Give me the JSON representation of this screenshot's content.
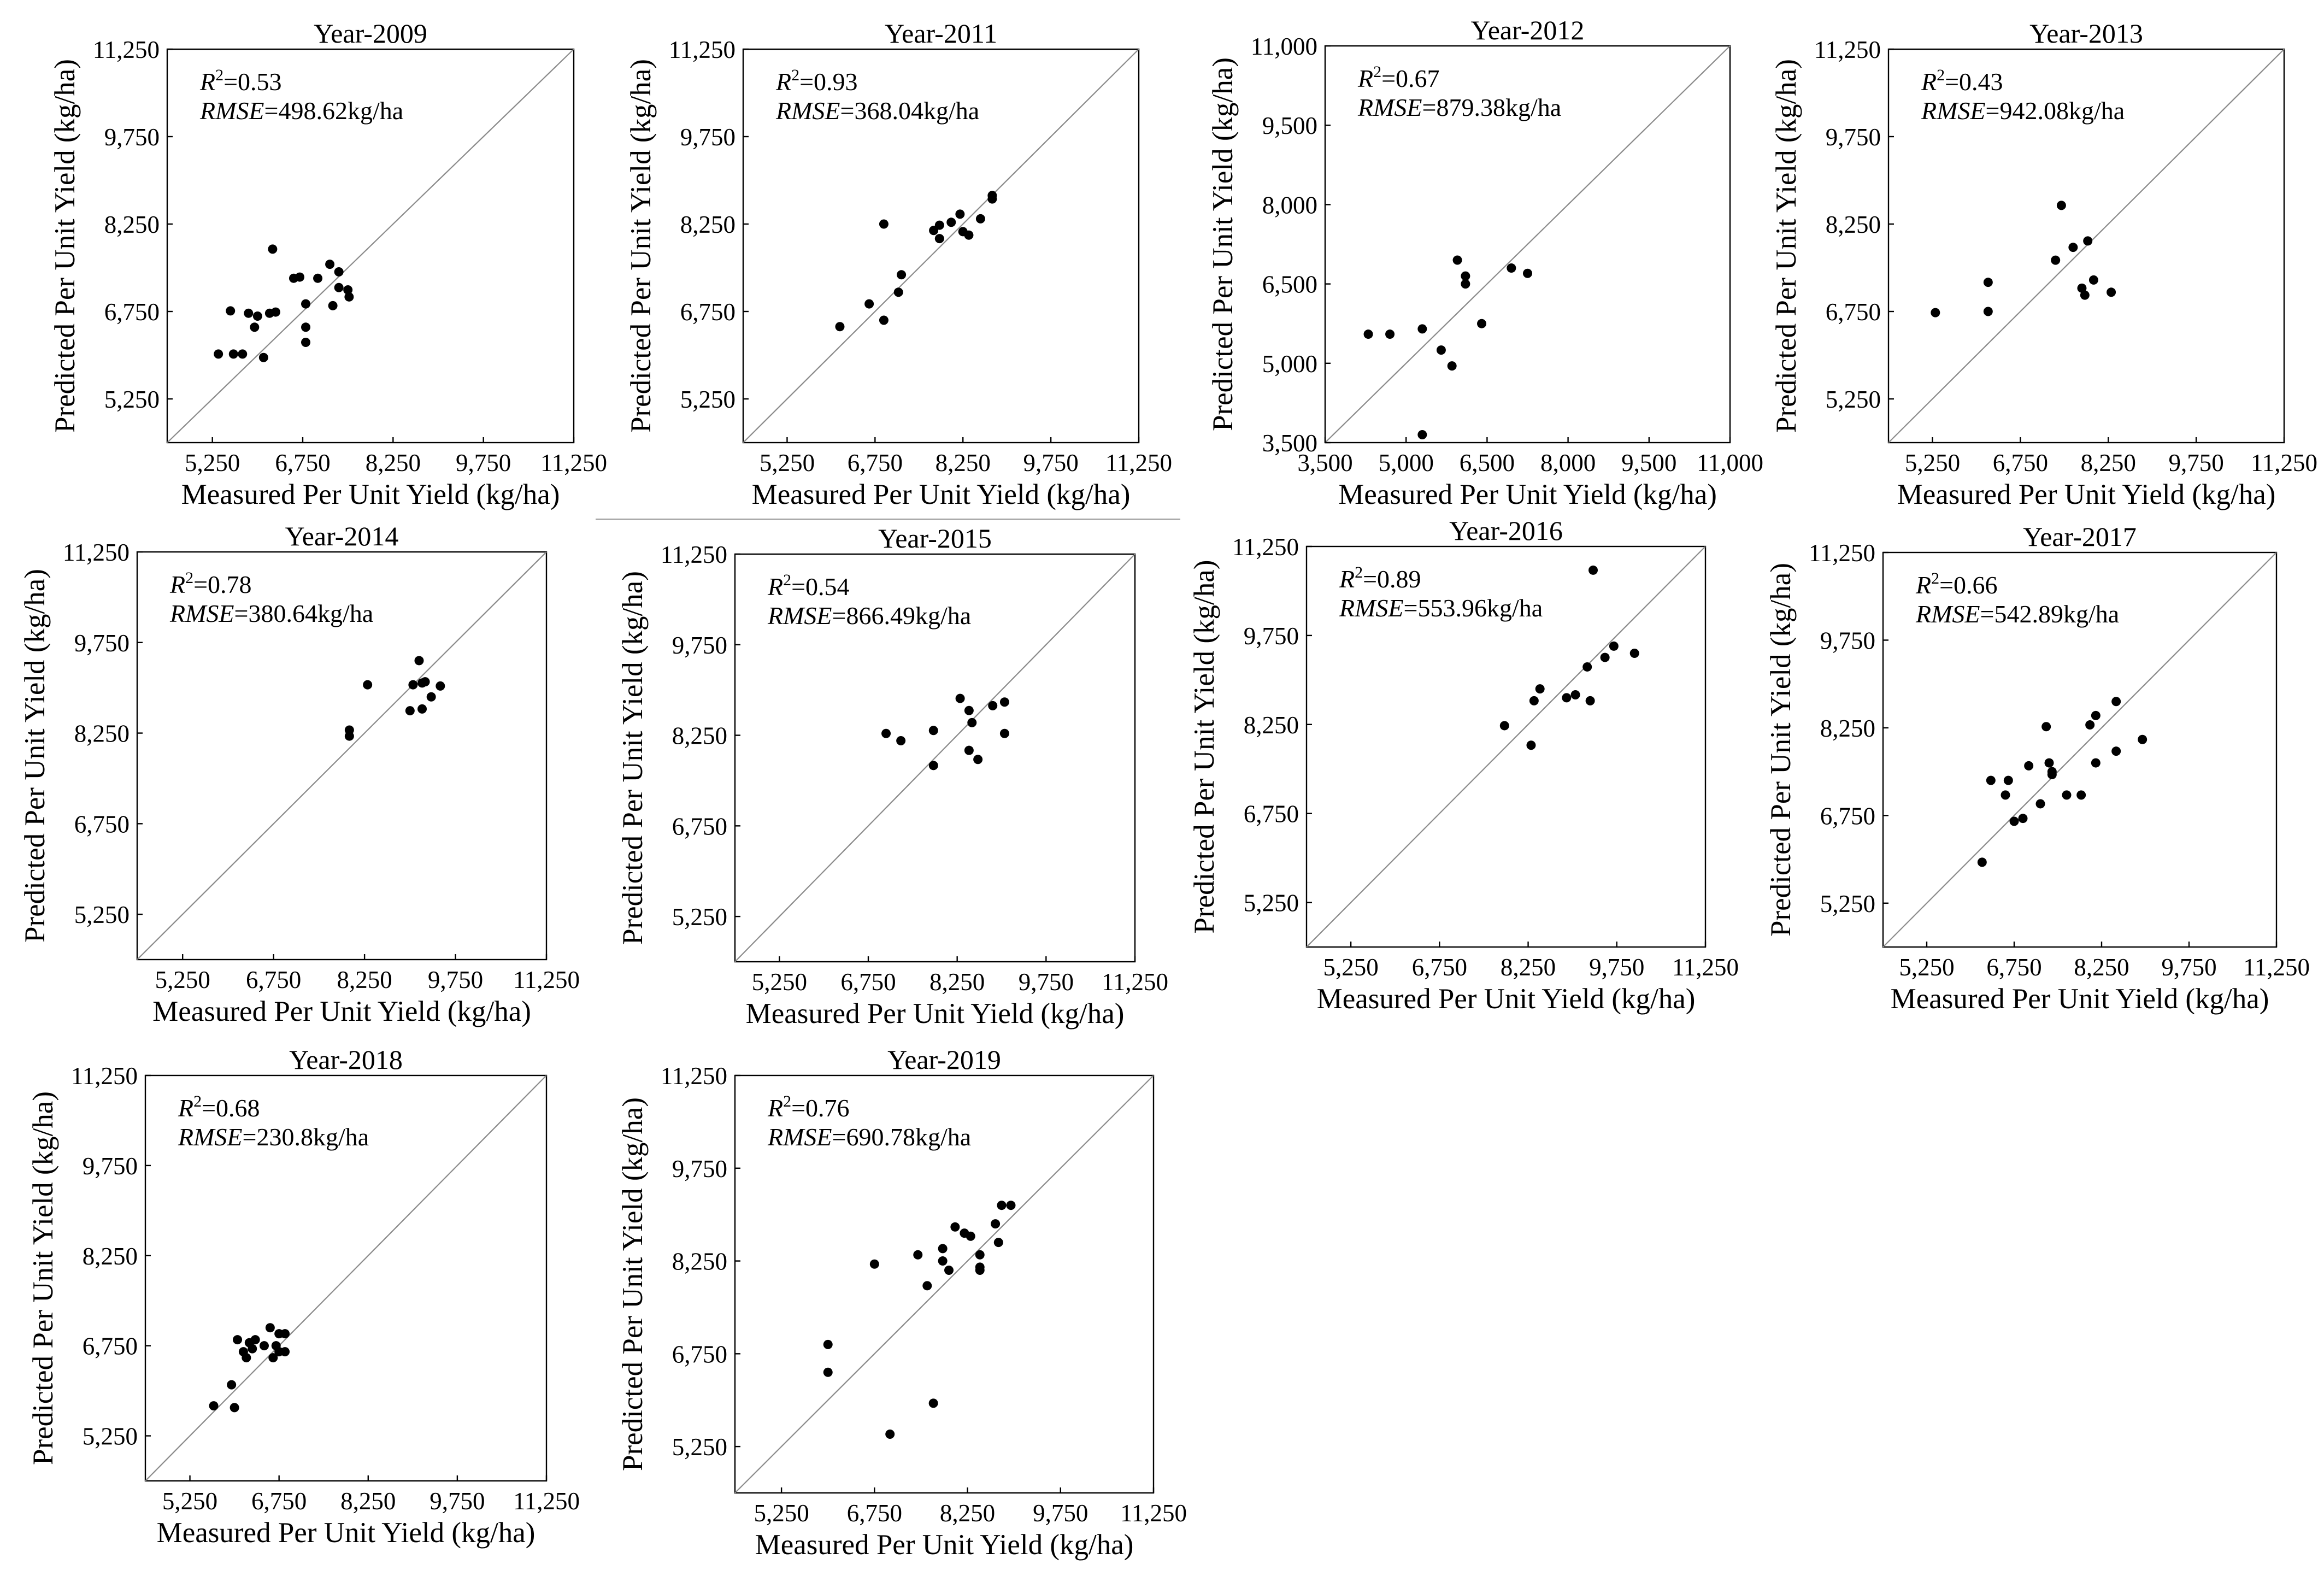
{
  "figure": {
    "xlabel": "Measured Per Unit Yield (kg/ha)",
    "ylabel": "Predicted Per Unit Yield (kg/ha)",
    "r2_label": "R",
    "r2_exponent": "2",
    "rmse_label": "RMSE"
  },
  "chart_data": [
    {
      "type": "scatter",
      "title": "Year-2009",
      "xlabel": "Measured Per Unit Yield (kg/ha)",
      "ylabel": "Predicted Per Unit Yield (kg/ha)",
      "xlim": [
        4500,
        11250
      ],
      "ylim": [
        4500,
        11250
      ],
      "xticks": [
        5250,
        6750,
        8250,
        9750,
        11250
      ],
      "yticks": [
        5250,
        6750,
        8250,
        9750,
        11250
      ],
      "x_tick_labels": [
        "5,250",
        "6,750",
        "8,250",
        "9,750",
        "11,250"
      ],
      "y_tick_labels": [
        "5,250",
        "6,750",
        "8,250",
        "9,750",
        "11,250"
      ],
      "reference_line": "1:1",
      "r2": "=0.53",
      "rmse": "=498.62kg/ha",
      "points": [
        [
          5350,
          6020
        ],
        [
          5550,
          6760
        ],
        [
          5600,
          6020
        ],
        [
          5750,
          6020
        ],
        [
          5850,
          6720
        ],
        [
          5950,
          6480
        ],
        [
          6000,
          6670
        ],
        [
          6100,
          5960
        ],
        [
          6200,
          6720
        ],
        [
          6300,
          6740
        ],
        [
          6250,
          7820
        ],
        [
          6600,
          7320
        ],
        [
          6700,
          7340
        ],
        [
          6800,
          6880
        ],
        [
          6800,
          6480
        ],
        [
          6800,
          6220
        ],
        [
          7000,
          7320
        ],
        [
          7200,
          7560
        ],
        [
          7350,
          7430
        ],
        [
          7250,
          6850
        ],
        [
          7500,
          7120
        ],
        [
          7520,
          7000
        ],
        [
          7350,
          7160
        ]
      ]
    },
    {
      "type": "scatter",
      "title": "Year-2011",
      "xlabel": "Measured Per Unit Yield (kg/ha)",
      "ylabel": "Predicted Per Unit Yield (kg/ha)",
      "xlim": [
        4500,
        11250
      ],
      "ylim": [
        4500,
        11250
      ],
      "xticks": [
        5250,
        6750,
        8250,
        9750,
        11250
      ],
      "yticks": [
        5250,
        6750,
        8250,
        9750,
        11250
      ],
      "x_tick_labels": [
        "5,250",
        "6,750",
        "8,250",
        "9,750",
        "11,250"
      ],
      "y_tick_labels": [
        "5,250",
        "6,750",
        "8,250",
        "9,750",
        "11,250"
      ],
      "reference_line": "1:1",
      "r2": "=0.93",
      "rmse": "=368.04kg/ha",
      "points": [
        [
          6150,
          6490
        ],
        [
          6650,
          6880
        ],
        [
          6900,
          6600
        ],
        [
          7150,
          7080
        ],
        [
          7200,
          7380
        ],
        [
          6900,
          8250
        ],
        [
          7750,
          8140
        ],
        [
          7850,
          8230
        ],
        [
          7850,
          8000
        ],
        [
          8050,
          8280
        ],
        [
          8200,
          8420
        ],
        [
          8250,
          8120
        ],
        [
          8350,
          8060
        ],
        [
          8550,
          8340
        ],
        [
          8750,
          8680
        ],
        [
          8750,
          8740
        ]
      ]
    },
    {
      "type": "scatter",
      "title": "Year-2012",
      "xlabel": "Measured Per Unit Yield (kg/ha)",
      "ylabel": "Predicted Per Unit Yield (kg/ha)",
      "xlim": [
        3500,
        11000
      ],
      "ylim": [
        3500,
        11000
      ],
      "xticks": [
        3500,
        5000,
        6500,
        8000,
        9500,
        11000
      ],
      "yticks": [
        3500,
        5000,
        6500,
        8000,
        9500,
        11000
      ],
      "x_tick_labels": [
        "3,500",
        "5,000",
        "6,500",
        "8,000",
        "9,500",
        "11,000"
      ],
      "y_tick_labels": [
        "3,500",
        "5,000",
        "6,500",
        "8,000",
        "9,500",
        "11,000"
      ],
      "reference_line": "1:1",
      "r2": "=0.67",
      "rmse": "=879.38kg/ha",
      "points": [
        [
          4300,
          5550
        ],
        [
          4700,
          5550
        ],
        [
          5300,
          5650
        ],
        [
          5300,
          3650
        ],
        [
          5650,
          5250
        ],
        [
          5850,
          4950
        ],
        [
          5950,
          6950
        ],
        [
          6100,
          6650
        ],
        [
          6100,
          6500
        ],
        [
          6400,
          5750
        ],
        [
          6950,
          6800
        ],
        [
          7250,
          6700
        ]
      ]
    },
    {
      "type": "scatter",
      "title": "Year-2013",
      "xlabel": "Measured Per Unit Yield (kg/ha)",
      "ylabel": "Predicted Per Unit Yield (kg/ha)",
      "xlim": [
        4500,
        11250
      ],
      "ylim": [
        4500,
        11250
      ],
      "xticks": [
        5250,
        6750,
        8250,
        9750,
        11250
      ],
      "yticks": [
        5250,
        6750,
        8250,
        9750,
        11250
      ],
      "x_tick_labels": [
        "5,250",
        "6,750",
        "8,250",
        "9,750",
        "11,250"
      ],
      "y_tick_labels": [
        "5,250",
        "6,750",
        "8,250",
        "9,750",
        "11,250"
      ],
      "reference_line": "1:1",
      "r2": "=0.43",
      "rmse": "=942.08kg/ha",
      "points": [
        [
          5300,
          6730
        ],
        [
          6200,
          6750
        ],
        [
          6200,
          7250
        ],
        [
          7350,
          7630
        ],
        [
          7450,
          8570
        ],
        [
          7650,
          7850
        ],
        [
          7800,
          7150
        ],
        [
          7850,
          7030
        ],
        [
          7900,
          7960
        ],
        [
          8000,
          7290
        ],
        [
          8300,
          7080
        ]
      ]
    },
    {
      "type": "scatter",
      "title": "Year-2014",
      "xlabel": "Measured Per Unit Yield (kg/ha)",
      "ylabel": "Predicted Per Unit Yield (kg/ha)",
      "xlim": [
        4500,
        11250
      ],
      "ylim": [
        4500,
        11250
      ],
      "xticks": [
        5250,
        6750,
        8250,
        9750,
        11250
      ],
      "yticks": [
        5250,
        6750,
        8250,
        9750,
        11250
      ],
      "x_tick_labels": [
        "5,250",
        "6,750",
        "8,250",
        "9,750",
        "11,250"
      ],
      "y_tick_labels": [
        "5,250",
        "6,750",
        "8,250",
        "9,750",
        "11,250"
      ],
      "reference_line": "1:1",
      "r2": "=0.78",
      "rmse": "=380.64kg/ha",
      "points": [
        [
          8000,
          8300
        ],
        [
          8000,
          8200
        ],
        [
          8300,
          9050
        ],
        [
          9000,
          8620
        ],
        [
          9050,
          9050
        ],
        [
          9150,
          9450
        ],
        [
          9200,
          9080
        ],
        [
          9200,
          8650
        ],
        [
          9350,
          8850
        ],
        [
          9500,
          9030
        ],
        [
          9250,
          9100
        ]
      ]
    },
    {
      "type": "scatter",
      "title": "Year-2015",
      "xlabel": "Measured Per Unit Yield (kg/ha)",
      "ylabel": "Predicted Per Unit Yield (kg/ha)",
      "xlim": [
        4500,
        11250
      ],
      "ylim": [
        4500,
        11250
      ],
      "xticks": [
        5250,
        6750,
        8250,
        9750,
        11250
      ],
      "yticks": [
        5250,
        6750,
        8250,
        9750,
        11250
      ],
      "x_tick_labels": [
        "5,250",
        "6,750",
        "8,250",
        "9,750",
        "11,250"
      ],
      "y_tick_labels": [
        "5,250",
        "6,750",
        "8,250",
        "9,750",
        "11,250"
      ],
      "reference_line": "1:1",
      "r2": "=0.54",
      "rmse": "=866.49kg/ha",
      "points": [
        [
          7050,
          8280
        ],
        [
          7300,
          8160
        ],
        [
          7850,
          8330
        ],
        [
          7850,
          7750
        ],
        [
          8300,
          8860
        ],
        [
          8450,
          8660
        ],
        [
          8500,
          8460
        ],
        [
          8450,
          8000
        ],
        [
          8600,
          7850
        ],
        [
          8850,
          8740
        ],
        [
          9050,
          8800
        ],
        [
          9050,
          8280
        ]
      ]
    },
    {
      "type": "scatter",
      "title": "Year-2016",
      "xlabel": "Measured Per Unit Yield (kg/ha)",
      "ylabel": "Predicted Per Unit Yield (kg/ha)",
      "xlim": [
        4500,
        11250
      ],
      "ylim": [
        4500,
        11250
      ],
      "xticks": [
        5250,
        6750,
        8250,
        9750,
        11250
      ],
      "yticks": [
        5250,
        6750,
        8250,
        9750,
        11250
      ],
      "x_tick_labels": [
        "5,250",
        "6,750",
        "8,250",
        "9,750",
        "11,250"
      ],
      "y_tick_labels": [
        "5,250",
        "6,750",
        "8,250",
        "9,750",
        "11,250"
      ],
      "reference_line": "1:1",
      "r2": "=0.89",
      "rmse": "=553.96kg/ha",
      "points": [
        [
          7850,
          8230
        ],
        [
          8300,
          7900
        ],
        [
          8350,
          8650
        ],
        [
          8450,
          8850
        ],
        [
          8900,
          8700
        ],
        [
          9050,
          8750
        ],
        [
          9250,
          9220
        ],
        [
          9300,
          8650
        ],
        [
          9350,
          10850
        ],
        [
          9550,
          9380
        ],
        [
          9700,
          9570
        ],
        [
          10050,
          9450
        ]
      ]
    },
    {
      "type": "scatter",
      "title": "Year-2017",
      "xlabel": "Measured Per Unit Yield (kg/ha)",
      "ylabel": "Predicted Per Unit Yield (kg/ha)",
      "xlim": [
        4500,
        11250
      ],
      "ylim": [
        4500,
        11250
      ],
      "xticks": [
        5250,
        6750,
        8250,
        9750,
        11250
      ],
      "yticks": [
        5250,
        6750,
        8250,
        9750,
        11250
      ],
      "x_tick_labels": [
        "5,250",
        "6,750",
        "8,250",
        "9,750",
        "11,250"
      ],
      "y_tick_labels": [
        "5,250",
        "6,750",
        "8,250",
        "9,750",
        "11,250"
      ],
      "reference_line": "1:1",
      "r2": "=0.66",
      "rmse": "=542.89kg/ha",
      "points": [
        [
          6200,
          5950
        ],
        [
          6350,
          7350
        ],
        [
          6600,
          7100
        ],
        [
          6650,
          7350
        ],
        [
          6750,
          6650
        ],
        [
          6900,
          6700
        ],
        [
          7000,
          7600
        ],
        [
          7200,
          6950
        ],
        [
          7300,
          8270
        ],
        [
          7400,
          7450
        ],
        [
          7350,
          7650
        ],
        [
          7400,
          7500
        ],
        [
          7650,
          7100
        ],
        [
          7900,
          7100
        ],
        [
          8050,
          8300
        ],
        [
          8150,
          8460
        ],
        [
          8150,
          7650
        ],
        [
          8500,
          8700
        ],
        [
          8500,
          7850
        ],
        [
          8950,
          8050
        ]
      ]
    },
    {
      "type": "scatter",
      "title": "Year-2018",
      "xlabel": "Measured Per Unit Yield (kg/ha)",
      "ylabel": "Predicted Per Unit Yield (kg/ha)",
      "xlim": [
        4500,
        11250
      ],
      "ylim": [
        4500,
        11250
      ],
      "xticks": [
        5250,
        6750,
        8250,
        9750,
        11250
      ],
      "yticks": [
        5250,
        6750,
        8250,
        9750,
        11250
      ],
      "x_tick_labels": [
        "5,250",
        "6,750",
        "8,250",
        "9,750",
        "11,250"
      ],
      "y_tick_labels": [
        "5,250",
        "6,750",
        "8,250",
        "9,750",
        "11,250"
      ],
      "reference_line": "1:1",
      "r2": "=0.68",
      "rmse": "=230.8kg/ha",
      "points": [
        [
          5650,
          5750
        ],
        [
          5950,
          6100
        ],
        [
          6000,
          5720
        ],
        [
          6050,
          6850
        ],
        [
          6150,
          6650
        ],
        [
          6200,
          6550
        ],
        [
          6250,
          6800
        ],
        [
          6300,
          6700
        ],
        [
          6350,
          6850
        ],
        [
          6500,
          6750
        ],
        [
          6600,
          7050
        ],
        [
          6650,
          6550
        ],
        [
          6700,
          6750
        ],
        [
          6750,
          6650
        ],
        [
          6750,
          6950
        ],
        [
          6850,
          6650
        ],
        [
          6850,
          6950
        ]
      ]
    },
    {
      "type": "scatter",
      "title": "Year-2019",
      "xlabel": "Measured Per Unit Yield (kg/ha)",
      "ylabel": "Predicted Per Unit Yield (kg/ha)",
      "xlim": [
        4500,
        11250
      ],
      "ylim": [
        4500,
        11250
      ],
      "xticks": [
        5250,
        6750,
        8250,
        9750,
        11250
      ],
      "yticks": [
        5250,
        6750,
        8250,
        9750,
        11250
      ],
      "x_tick_labels": [
        "5,250",
        "6,750",
        "8,250",
        "9,750",
        "11,250"
      ],
      "y_tick_labels": [
        "5,250",
        "6,750",
        "8,250",
        "9,750",
        "11,250"
      ],
      "reference_line": "1:1",
      "r2": "=0.76",
      "rmse": "=690.78kg/ha",
      "points": [
        [
          6000,
          6900
        ],
        [
          6000,
          6450
        ],
        [
          6750,
          8200
        ],
        [
          7000,
          5450
        ],
        [
          7450,
          8350
        ],
        [
          7600,
          7850
        ],
        [
          7700,
          5950
        ],
        [
          7850,
          8250
        ],
        [
          7850,
          8450
        ],
        [
          7950,
          8100
        ],
        [
          8050,
          8800
        ],
        [
          8200,
          8700
        ],
        [
          8300,
          8650
        ],
        [
          8450,
          8350
        ],
        [
          8450,
          8150
        ],
        [
          8450,
          8100
        ],
        [
          8700,
          8850
        ],
        [
          8750,
          8550
        ],
        [
          8800,
          9150
        ],
        [
          8950,
          9150
        ]
      ]
    }
  ]
}
